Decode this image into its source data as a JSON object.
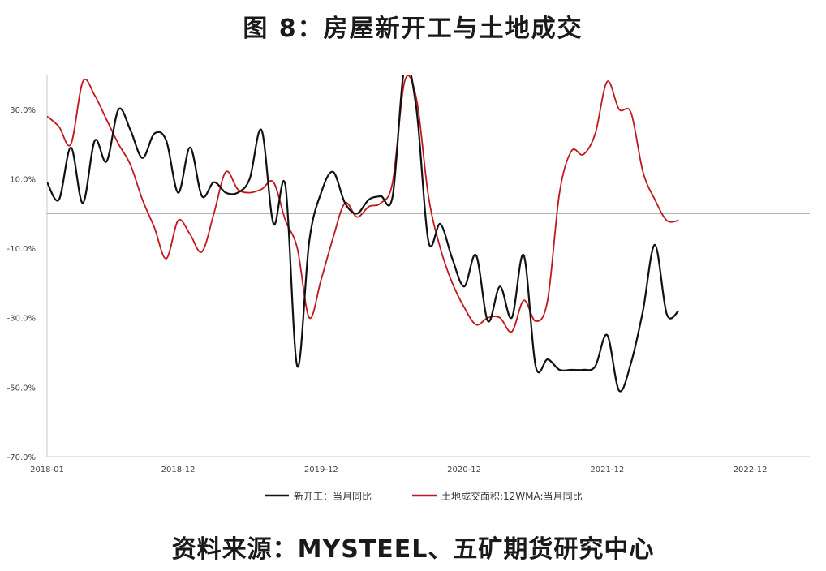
{
  "header": {
    "title": "图 8：房屋新开工与土地成交"
  },
  "footer": {
    "source": "资料来源：MYSTEEL、五矿期货研究中心"
  },
  "chart_data": {
    "type": "line",
    "title": "图 8：房屋新开工与土地成交",
    "xlabel": "",
    "ylabel": "",
    "ylim": [
      -70,
      40
    ],
    "yticks": [
      30,
      10,
      -10,
      -30,
      -50,
      -70
    ],
    "ytick_labels": [
      "30.0%",
      "10.0%",
      "-10.0%",
      "-30.0%",
      "-50.0%",
      "-70.0%"
    ],
    "xlim": [
      "2018-01",
      "2023-05"
    ],
    "xticks": [
      "2018-01",
      "2018-12",
      "2019-12",
      "2020-12",
      "2021-12",
      "2022-12"
    ],
    "grid": false,
    "zero_line": true,
    "legend_position": "bottom",
    "series": [
      {
        "name": "新开工：当月同比",
        "color": "#111111",
        "points": [
          [
            "2018-01",
            9
          ],
          [
            "2018-02",
            4
          ],
          [
            "2018-03",
            19
          ],
          [
            "2018-04",
            3
          ],
          [
            "2018-05",
            21
          ],
          [
            "2018-06",
            15
          ],
          [
            "2018-07",
            30
          ],
          [
            "2018-08",
            24
          ],
          [
            "2018-09",
            16
          ],
          [
            "2018-10",
            23
          ],
          [
            "2018-11",
            21
          ],
          [
            "2018-12",
            6
          ],
          [
            "2019-01",
            19
          ],
          [
            "2019-02",
            5
          ],
          [
            "2019-03",
            9
          ],
          [
            "2019-04",
            6
          ],
          [
            "2019-05",
            6
          ],
          [
            "2019-06",
            10
          ],
          [
            "2019-07",
            24
          ],
          [
            "2019-08",
            -3
          ],
          [
            "2019-09",
            8
          ],
          [
            "2019-10",
            -44
          ],
          [
            "2019-11",
            -8
          ],
          [
            "2019-12",
            6
          ],
          [
            "2020-01",
            12
          ],
          [
            "2020-02",
            3
          ],
          [
            "2020-03",
            0
          ],
          [
            "2020-04",
            4
          ],
          [
            "2020-05",
            5
          ],
          [
            "2020-06",
            5
          ],
          [
            "2020-07",
            42
          ],
          [
            "2020-08",
            30
          ],
          [
            "2020-09",
            -8
          ],
          [
            "2020-10",
            -3
          ],
          [
            "2020-11",
            -13
          ],
          [
            "2020-12",
            -21
          ],
          [
            "2021-01",
            -12
          ],
          [
            "2021-02",
            -31
          ],
          [
            "2021-03",
            -21
          ],
          [
            "2021-04",
            -30
          ],
          [
            "2021-05",
            -12
          ],
          [
            "2021-06",
            -44
          ],
          [
            "2021-07",
            -42
          ],
          [
            "2021-08",
            -45
          ],
          [
            "2021-09",
            -45
          ],
          [
            "2021-10",
            -45
          ],
          [
            "2021-11",
            -44
          ],
          [
            "2021-12",
            -35
          ],
          [
            "2022-01",
            -51
          ],
          [
            "2022-02",
            -43
          ],
          [
            "2022-03",
            -28
          ],
          [
            "2022-04",
            -9
          ],
          [
            "2022-05",
            -29
          ],
          [
            "2022-06",
            -28
          ]
        ]
      },
      {
        "name": "土地成交面积:12WMA:当月同比",
        "color": "#c0181e",
        "points": [
          [
            "2018-01",
            28
          ],
          [
            "2018-02",
            25
          ],
          [
            "2018-03",
            20
          ],
          [
            "2018-04",
            38
          ],
          [
            "2018-05",
            34
          ],
          [
            "2018-06",
            27
          ],
          [
            "2018-07",
            20
          ],
          [
            "2018-08",
            14
          ],
          [
            "2018-09",
            4
          ],
          [
            "2018-10",
            -4
          ],
          [
            "2018-11",
            -13
          ],
          [
            "2018-12",
            -2
          ],
          [
            "2019-01",
            -6
          ],
          [
            "2019-02",
            -11
          ],
          [
            "2019-03",
            0
          ],
          [
            "2019-04",
            12
          ],
          [
            "2019-05",
            7
          ],
          [
            "2019-06",
            6
          ],
          [
            "2019-07",
            7
          ],
          [
            "2019-08",
            9
          ],
          [
            "2019-09",
            -2
          ],
          [
            "2019-10",
            -10
          ],
          [
            "2019-11",
            -30
          ],
          [
            "2019-12",
            -19
          ],
          [
            "2020-01",
            -7
          ],
          [
            "2020-02",
            3
          ],
          [
            "2020-03",
            -1
          ],
          [
            "2020-04",
            2
          ],
          [
            "2020-05",
            3
          ],
          [
            "2020-06",
            9
          ],
          [
            "2020-07",
            38
          ],
          [
            "2020-08",
            33
          ],
          [
            "2020-09",
            5
          ],
          [
            "2020-10",
            -10
          ],
          [
            "2020-11",
            -20
          ],
          [
            "2020-12",
            -27
          ],
          [
            "2021-01",
            -32
          ],
          [
            "2021-02",
            -30
          ],
          [
            "2021-03",
            -30
          ],
          [
            "2021-04",
            -34
          ],
          [
            "2021-05",
            -25
          ],
          [
            "2021-06",
            -31
          ],
          [
            "2021-07",
            -25
          ],
          [
            "2021-08",
            6
          ],
          [
            "2021-09",
            18
          ],
          [
            "2021-10",
            17
          ],
          [
            "2021-11",
            23
          ],
          [
            "2021-12",
            38
          ],
          [
            "2022-01",
            30
          ],
          [
            "2022-02",
            29
          ],
          [
            "2022-03",
            12
          ],
          [
            "2022-04",
            4
          ],
          [
            "2022-05",
            -2
          ],
          [
            "2022-06",
            -2
          ]
        ]
      }
    ]
  }
}
